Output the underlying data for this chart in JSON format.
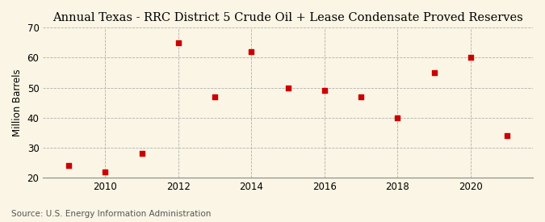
{
  "title": "Annual Texas - RRC District 5 Crude Oil + Lease Condensate Proved Reserves",
  "ylabel": "Million Barrels",
  "source": "Source: U.S. Energy Information Administration",
  "years": [
    2009,
    2010,
    2011,
    2012,
    2013,
    2014,
    2015,
    2016,
    2017,
    2018,
    2019,
    2020,
    2021
  ],
  "values": [
    24,
    22,
    28,
    65,
    47,
    62,
    50,
    49,
    47,
    40,
    55,
    60,
    34
  ],
  "marker_color": "#cc0000",
  "marker_size": 5,
  "ylim": [
    20,
    70
  ],
  "yticks": [
    20,
    30,
    40,
    50,
    60,
    70
  ],
  "xlim": [
    2008.3,
    2021.7
  ],
  "xticks": [
    2010,
    2012,
    2014,
    2016,
    2018,
    2020
  ],
  "bg_color": "#faf5e4",
  "grid_color": "#b0b0b0",
  "title_fontsize": 10.5,
  "label_fontsize": 8.5,
  "tick_fontsize": 8.5,
  "source_fontsize": 7.5
}
